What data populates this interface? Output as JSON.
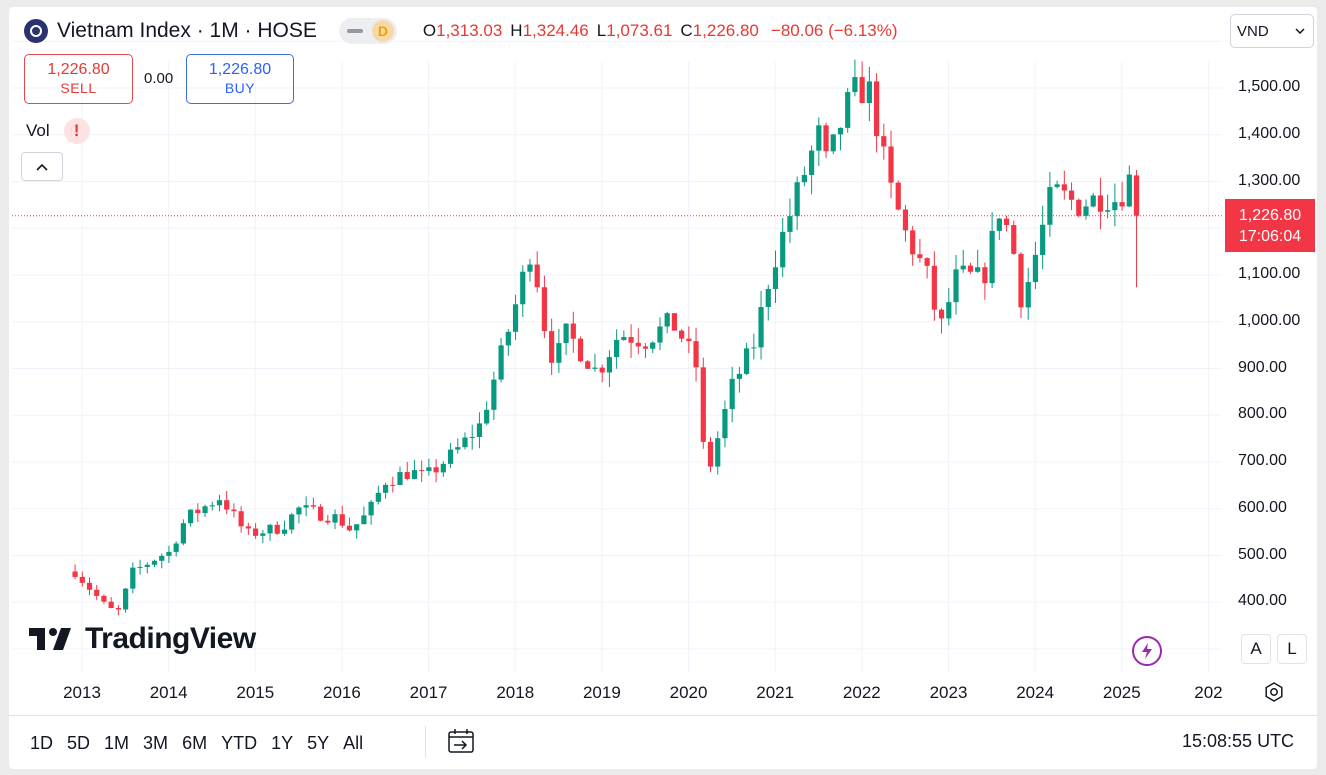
{
  "header": {
    "title": "Vietnam Index · 1M · HOSE",
    "mode_badge": "D",
    "ohlc": [
      {
        "key": "O",
        "value": "1,313.03"
      },
      {
        "key": "H",
        "value": "1,324.46"
      },
      {
        "key": "L",
        "value": "1,073.61"
      },
      {
        "key": "C",
        "value": "1,226.80"
      }
    ],
    "change": "−80.06 (−6.13%)",
    "currency": "VND"
  },
  "trade": {
    "sell_price": "1,226.80",
    "sell_label": "SELL",
    "spread": "0.00",
    "buy_price": "1,226.80",
    "buy_label": "BUY"
  },
  "indicator": {
    "label": "Vol",
    "warning": "!"
  },
  "price_tag": {
    "price": "1,226.80",
    "countdown": "17:06:04"
  },
  "brand": "TradingView",
  "axis_buttons": {
    "auto": "A",
    "log": "L"
  },
  "ranges": [
    "1D",
    "5D",
    "1M",
    "3M",
    "6M",
    "YTD",
    "1Y",
    "5Y",
    "All"
  ],
  "clock": "15:08:55 UTC",
  "colors": {
    "up": "#089981",
    "down": "#f23645",
    "grid": "#f0f3fa"
  },
  "chart_data": {
    "type": "candlestick",
    "title": "Vietnam Index · 1M · HOSE",
    "interval": "1M",
    "y_range": [
      300,
      1600
    ],
    "y_ticks": [
      "1,500.00",
      "1,400.00",
      "1,300.00",
      "1,100.00",
      "1,000.00",
      "900.00",
      "800.00",
      "700.00",
      "600.00",
      "500.00",
      "400.00"
    ],
    "y_tick_values": [
      1500,
      1400,
      1300,
      1100,
      1000,
      900,
      800,
      700,
      600,
      500,
      400
    ],
    "x_ticks": [
      "2013",
      "2014",
      "2015",
      "2016",
      "2017",
      "2018",
      "2019",
      "2020",
      "2021",
      "2022",
      "2023",
      "2024",
      "2025",
      "202"
    ],
    "last_close": 1226.8,
    "anchors": [
      [
        2012.9,
        470
      ],
      [
        2013.3,
        385
      ],
      [
        2013.45,
        380
      ],
      [
        2013.55,
        460
      ],
      [
        2013.9,
        500
      ],
      [
        2014.0,
        505
      ],
      [
        2014.2,
        580
      ],
      [
        2014.6,
        625
      ],
      [
        2014.9,
        545
      ],
      [
        2015.3,
        560
      ],
      [
        2015.5,
        600
      ],
      [
        2015.95,
        580
      ],
      [
        2016.1,
        555
      ],
      [
        2016.3,
        590
      ],
      [
        2016.5,
        660
      ],
      [
        2016.8,
        680
      ],
      [
        2016.95,
        665
      ],
      [
        2017.3,
        720
      ],
      [
        2017.6,
        780
      ],
      [
        2017.95,
        1000
      ],
      [
        2018.2,
        1170
      ],
      [
        2018.3,
        1020
      ],
      [
        2018.45,
        910
      ],
      [
        2018.6,
        980
      ],
      [
        2018.7,
        950
      ],
      [
        2018.95,
        890
      ],
      [
        2019.2,
        975
      ],
      [
        2019.5,
        960
      ],
      [
        2019.8,
        1000
      ],
      [
        2019.95,
        960
      ],
      [
        2020.1,
        900
      ],
      [
        2020.2,
        660
      ],
      [
        2020.5,
        860
      ],
      [
        2020.75,
        950
      ],
      [
        2020.95,
        1110
      ],
      [
        2021.3,
        1300
      ],
      [
        2021.5,
        1400
      ],
      [
        2021.6,
        1330
      ],
      [
        2021.8,
        1450
      ],
      [
        2021.95,
        1500
      ],
      [
        2022.1,
        1490
      ],
      [
        2022.3,
        1300
      ],
      [
        2022.5,
        1190
      ],
      [
        2022.75,
        1100
      ],
      [
        2022.9,
        980
      ],
      [
        2023.1,
        1100
      ],
      [
        2023.4,
        1090
      ],
      [
        2023.6,
        1250
      ],
      [
        2023.75,
        1150
      ],
      [
        2023.85,
        1040
      ],
      [
        2024.0,
        1140
      ],
      [
        2024.2,
        1280
      ],
      [
        2024.5,
        1250
      ],
      [
        2024.8,
        1270
      ],
      [
        2024.95,
        1260
      ],
      [
        2025.1,
        1310
      ],
      [
        2025.2,
        1226.8
      ]
    ]
  }
}
